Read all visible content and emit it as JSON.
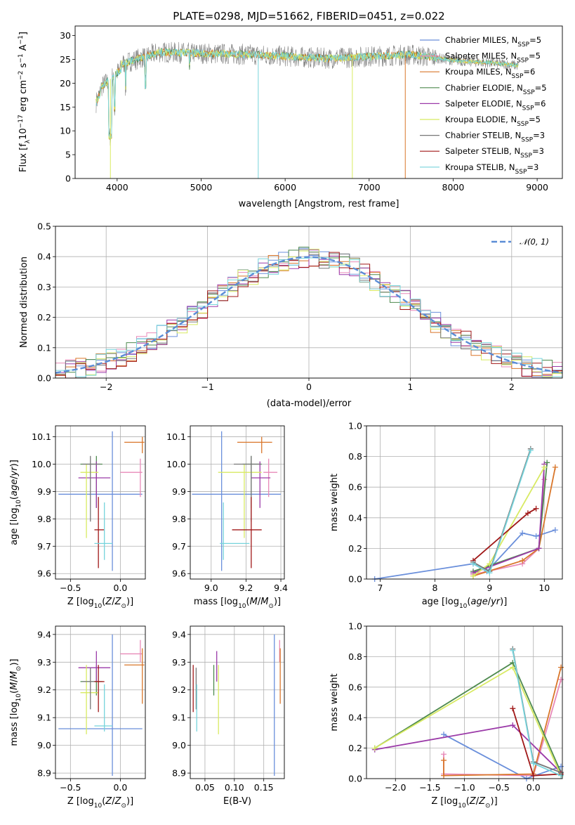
{
  "title": "PLATE=0298, MJD=51662, FIBERID=0451, z=0.022",
  "colors": {
    "cm": "#6a8fdb",
    "sm": "#e889b8",
    "km": "#d9762a",
    "ce": "#4e8a4e",
    "se": "#9b3aa8",
    "ke": "#d8ea62",
    "cs": "#777777",
    "ss": "#a01818",
    "ks": "#76d4dc",
    "norm": "#5b8dd6"
  },
  "chart_data": [
    {
      "id": "spectrum",
      "type": "line",
      "xlabel": "wavelength [Angstrom, rest frame]",
      "ylabel": "Flux [fλ10⁻¹⁷ erg cm⁻² s⁻¹ A⁻¹]",
      "xlim": [
        3500,
        9300
      ],
      "ylim": [
        0,
        32
      ],
      "xticks": [
        "4000",
        "5000",
        "6000",
        "7000",
        "8000",
        "9000"
      ],
      "yticks": [
        "0",
        "5",
        "10",
        "15",
        "20",
        "25",
        "30"
      ],
      "legend_position": "top-right",
      "legend": [
        "Chabrier MILES, N_SSP=5",
        "Salpeter MILES, N_SSP=5",
        "Kroupa MILES, N_SSP=6",
        "Chabrier ELODIE, N_SSP=5",
        "Salpeter ELODIE, N_SSP=6",
        "Kroupa ELODIE, N_SSP=5",
        "Chabrier STELIB, N_SSP=3",
        "Salpeter STELIB, N_SSP=3",
        "Kroupa STELIB, N_SSP=3"
      ],
      "data_range": [
        3750,
        8780
      ]
    },
    {
      "id": "hist",
      "type": "line",
      "xlabel": "(data-model)/error",
      "ylabel": "Normed distribution",
      "xlim": [
        -2.5,
        2.5
      ],
      "ylim": [
        0,
        0.5
      ],
      "xticks": [
        "−2",
        "−1",
        "0",
        "1",
        "2"
      ],
      "yticks": [
        "0.0",
        "0.1",
        "0.2",
        "0.3",
        "0.4",
        "0.5"
      ],
      "legend": [
        "𝒩(0, 1)"
      ],
      "grid": true
    },
    {
      "id": "age_z",
      "type": "scatter",
      "xlabel": "Z [log10(Z/Z⊙)]",
      "ylabel": "age [log10(age/yr)]",
      "xlim": [
        -0.65,
        0.25
      ],
      "ylim": [
        9.58,
        10.14
      ],
      "xticks": [
        "−0.5",
        "0.0"
      ],
      "yticks": [
        "9.6",
        "9.7",
        "9.8",
        "9.9",
        "10.0",
        "10.1"
      ]
    },
    {
      "id": "age_mass",
      "type": "scatter",
      "xlabel": "mass [log10(M/M⊙)]",
      "ylabel": "",
      "xlim": [
        8.88,
        9.42
      ],
      "ylim": [
        9.58,
        10.14
      ],
      "xticks": [
        "9.0",
        "9.2",
        "9.4"
      ],
      "yticks": [
        "9.6",
        "9.7",
        "9.8",
        "9.9",
        "10.0",
        "10.1"
      ]
    },
    {
      "id": "mw_age",
      "type": "line",
      "xlabel": "age [log10(age/yr)]",
      "ylabel": "mass weight",
      "xlim": [
        6.75,
        10.33
      ],
      "ylim": [
        0,
        1
      ],
      "xticks": [
        "7",
        "8",
        "9",
        "10"
      ],
      "yticks": [
        "0.0",
        "0.2",
        "0.4",
        "0.6",
        "0.8",
        "1.0"
      ]
    },
    {
      "id": "mass_z",
      "type": "scatter",
      "xlabel": "Z [log10(Z/Z⊙)]",
      "ylabel": "mass [log10(M/M⊙)]",
      "xlim": [
        -0.65,
        0.25
      ],
      "ylim": [
        8.88,
        9.43
      ],
      "xticks": [
        "−0.5",
        "0.0"
      ],
      "yticks": [
        "8.9",
        "9.0",
        "9.1",
        "9.2",
        "9.3",
        "9.4"
      ]
    },
    {
      "id": "mass_ebv",
      "type": "scatter",
      "xlabel": "E(B-V)",
      "ylabel": "",
      "xlim": [
        0.025,
        0.185
      ],
      "ylim": [
        8.88,
        9.43
      ],
      "xticks": [
        "0.05",
        "0.10",
        "0.15"
      ],
      "yticks": [
        "8.9",
        "9.0",
        "9.1",
        "9.2",
        "9.3",
        "9.4"
      ]
    },
    {
      "id": "mw_z",
      "type": "line",
      "xlabel": "Z [log10(Z/Z⊙)]",
      "ylabel": "mass weight",
      "xlim": [
        -2.42,
        0.42
      ],
      "ylim": [
        0,
        1
      ],
      "xticks": [
        "−2.0",
        "−1.5",
        "−1.0",
        "−0.5",
        "0.0"
      ],
      "yticks": [
        "0.0",
        "0.2",
        "0.4",
        "0.6",
        "0.8",
        "1.0"
      ]
    }
  ],
  "models": [
    {
      "k": "cm",
      "z": -0.08,
      "zlo": -0.62,
      "zhi": 0.22,
      "age": 9.89,
      "alo": 9.61,
      "ahi": 10.12,
      "m": 9.06,
      "mlo": 8.89,
      "mhi": 9.4,
      "ebv": 0.168
    },
    {
      "k": "sm",
      "z": 0.2,
      "zlo": 0.0,
      "zhi": 0.22,
      "age": 9.97,
      "alo": 9.88,
      "ahi": 10.02,
      "m": 9.33,
      "mlo": 9.3,
      "mhi": 9.38,
      "ebv": 0.177
    },
    {
      "k": "km",
      "z": 0.22,
      "zlo": 0.04,
      "zhi": 0.24,
      "age": 10.08,
      "alo": 10.04,
      "ahi": 10.1,
      "m": 9.29,
      "mlo": 9.15,
      "mhi": 9.35,
      "ebv": 0.178
    },
    {
      "k": "ce",
      "z": -0.24,
      "zlo": -0.4,
      "zhi": -0.18,
      "age": 10.0,
      "alo": 9.84,
      "ahi": 10.03,
      "m": 9.23,
      "mlo": 9.18,
      "mhi": 9.29,
      "ebv": 0.065
    },
    {
      "k": "se",
      "z": -0.24,
      "zlo": -0.42,
      "zhi": -0.1,
      "age": 9.95,
      "alo": 9.84,
      "ahi": 10.01,
      "m": 9.28,
      "mlo": 9.23,
      "mhi": 9.34,
      "ebv": 0.07
    },
    {
      "k": "ke",
      "z": -0.34,
      "zlo": -0.4,
      "zhi": -0.22,
      "age": 9.97,
      "alo": 9.73,
      "ahi": 10.0,
      "m": 9.19,
      "mlo": 9.04,
      "mhi": 9.29,
      "ebv": 0.073
    },
    {
      "k": "cs",
      "z": -0.3,
      "zlo": -0.38,
      "zhi": -0.2,
      "age": 10.0,
      "alo": 9.79,
      "ahi": 10.03,
      "m": 9.23,
      "mlo": 9.13,
      "mhi": 9.28,
      "ebv": 0.035
    },
    {
      "k": "ss",
      "z": -0.22,
      "zlo": -0.26,
      "zhi": -0.16,
      "age": 9.76,
      "alo": 9.62,
      "ahi": 9.88,
      "m": 9.23,
      "mlo": 9.12,
      "mhi": 9.29,
      "ebv": 0.03
    },
    {
      "k": "ks",
      "z": -0.16,
      "zlo": -0.26,
      "zhi": -0.08,
      "age": 9.71,
      "alo": 9.65,
      "ahi": 9.86,
      "m": 9.07,
      "mlo": 9.05,
      "mhi": 9.22,
      "ebv": 0.036
    }
  ],
  "weights_age": [
    {
      "k": "cm",
      "pts": [
        [
          6.9,
          0.0
        ],
        [
          8.7,
          0.1
        ],
        [
          8.95,
          0.05
        ],
        [
          9.6,
          0.3
        ],
        [
          9.85,
          0.28
        ],
        [
          10.2,
          0.32
        ]
      ]
    },
    {
      "k": "sm",
      "pts": [
        [
          8.7,
          0.03
        ],
        [
          9.6,
          0.1
        ],
        [
          9.9,
          0.2
        ],
        [
          10.0,
          0.65
        ]
      ]
    },
    {
      "k": "km",
      "pts": [
        [
          8.7,
          0.02
        ],
        [
          9.6,
          0.12
        ],
        [
          9.9,
          0.2
        ],
        [
          10.2,
          0.73
        ]
      ]
    },
    {
      "k": "ce",
      "pts": [
        [
          8.7,
          0.05
        ],
        [
          9.9,
          0.2
        ],
        [
          10.05,
          0.76
        ]
      ]
    },
    {
      "k": "se",
      "pts": [
        [
          8.7,
          0.04
        ],
        [
          9.9,
          0.2
        ],
        [
          10.0,
          0.75
        ]
      ]
    },
    {
      "k": "ke",
      "pts": [
        [
          8.7,
          0.02
        ],
        [
          9.0,
          0.1
        ],
        [
          10.0,
          0.73
        ]
      ]
    },
    {
      "k": "cs",
      "pts": [
        [
          8.7,
          0.11
        ],
        [
          9.0,
          0.05
        ],
        [
          9.75,
          0.85
        ]
      ]
    },
    {
      "k": "ss",
      "pts": [
        [
          8.7,
          0.12
        ],
        [
          9.7,
          0.43
        ],
        [
          9.85,
          0.46
        ]
      ]
    },
    {
      "k": "ks",
      "pts": [
        [
          8.7,
          0.1
        ],
        [
          9.0,
          0.04
        ],
        [
          9.75,
          0.84
        ]
      ]
    }
  ],
  "weights_z": [
    {
      "k": "cm",
      "pts": [
        [
          -1.3,
          0.29
        ],
        [
          -0.1,
          0.0
        ],
        [
          0.4,
          0.08
        ]
      ]
    },
    {
      "k": "sm",
      "pts": [
        [
          -1.3,
          0.16
        ],
        [
          -1.3,
          0.03
        ],
        [
          0.0,
          0.02
        ],
        [
          0.4,
          0.65
        ]
      ]
    },
    {
      "k": "km",
      "pts": [
        [
          -1.3,
          0.12
        ],
        [
          -1.3,
          0.02
        ],
        [
          0.0,
          0.03
        ],
        [
          0.4,
          0.73
        ]
      ]
    },
    {
      "k": "ce",
      "pts": [
        [
          -2.3,
          0.2
        ],
        [
          -0.3,
          0.76
        ],
        [
          0.4,
          0.04
        ]
      ]
    },
    {
      "k": "se",
      "pts": [
        [
          -2.3,
          0.19
        ],
        [
          -0.3,
          0.35
        ],
        [
          0.4,
          0.04
        ]
      ]
    },
    {
      "k": "ke",
      "pts": [
        [
          -2.3,
          0.2
        ],
        [
          -0.3,
          0.73
        ],
        [
          0.4,
          0.02
        ]
      ]
    },
    {
      "k": "cs",
      "pts": [
        [
          -0.3,
          0.85
        ],
        [
          0.0,
          0.11
        ],
        [
          0.4,
          0.04
        ]
      ]
    },
    {
      "k": "ss",
      "pts": [
        [
          -0.3,
          0.46
        ],
        [
          0.0,
          0.02
        ],
        [
          0.4,
          0.03
        ]
      ]
    },
    {
      "k": "ks",
      "pts": [
        [
          -0.3,
          0.84
        ],
        [
          0.0,
          0.1
        ],
        [
          0.4,
          0.02
        ]
      ]
    }
  ]
}
